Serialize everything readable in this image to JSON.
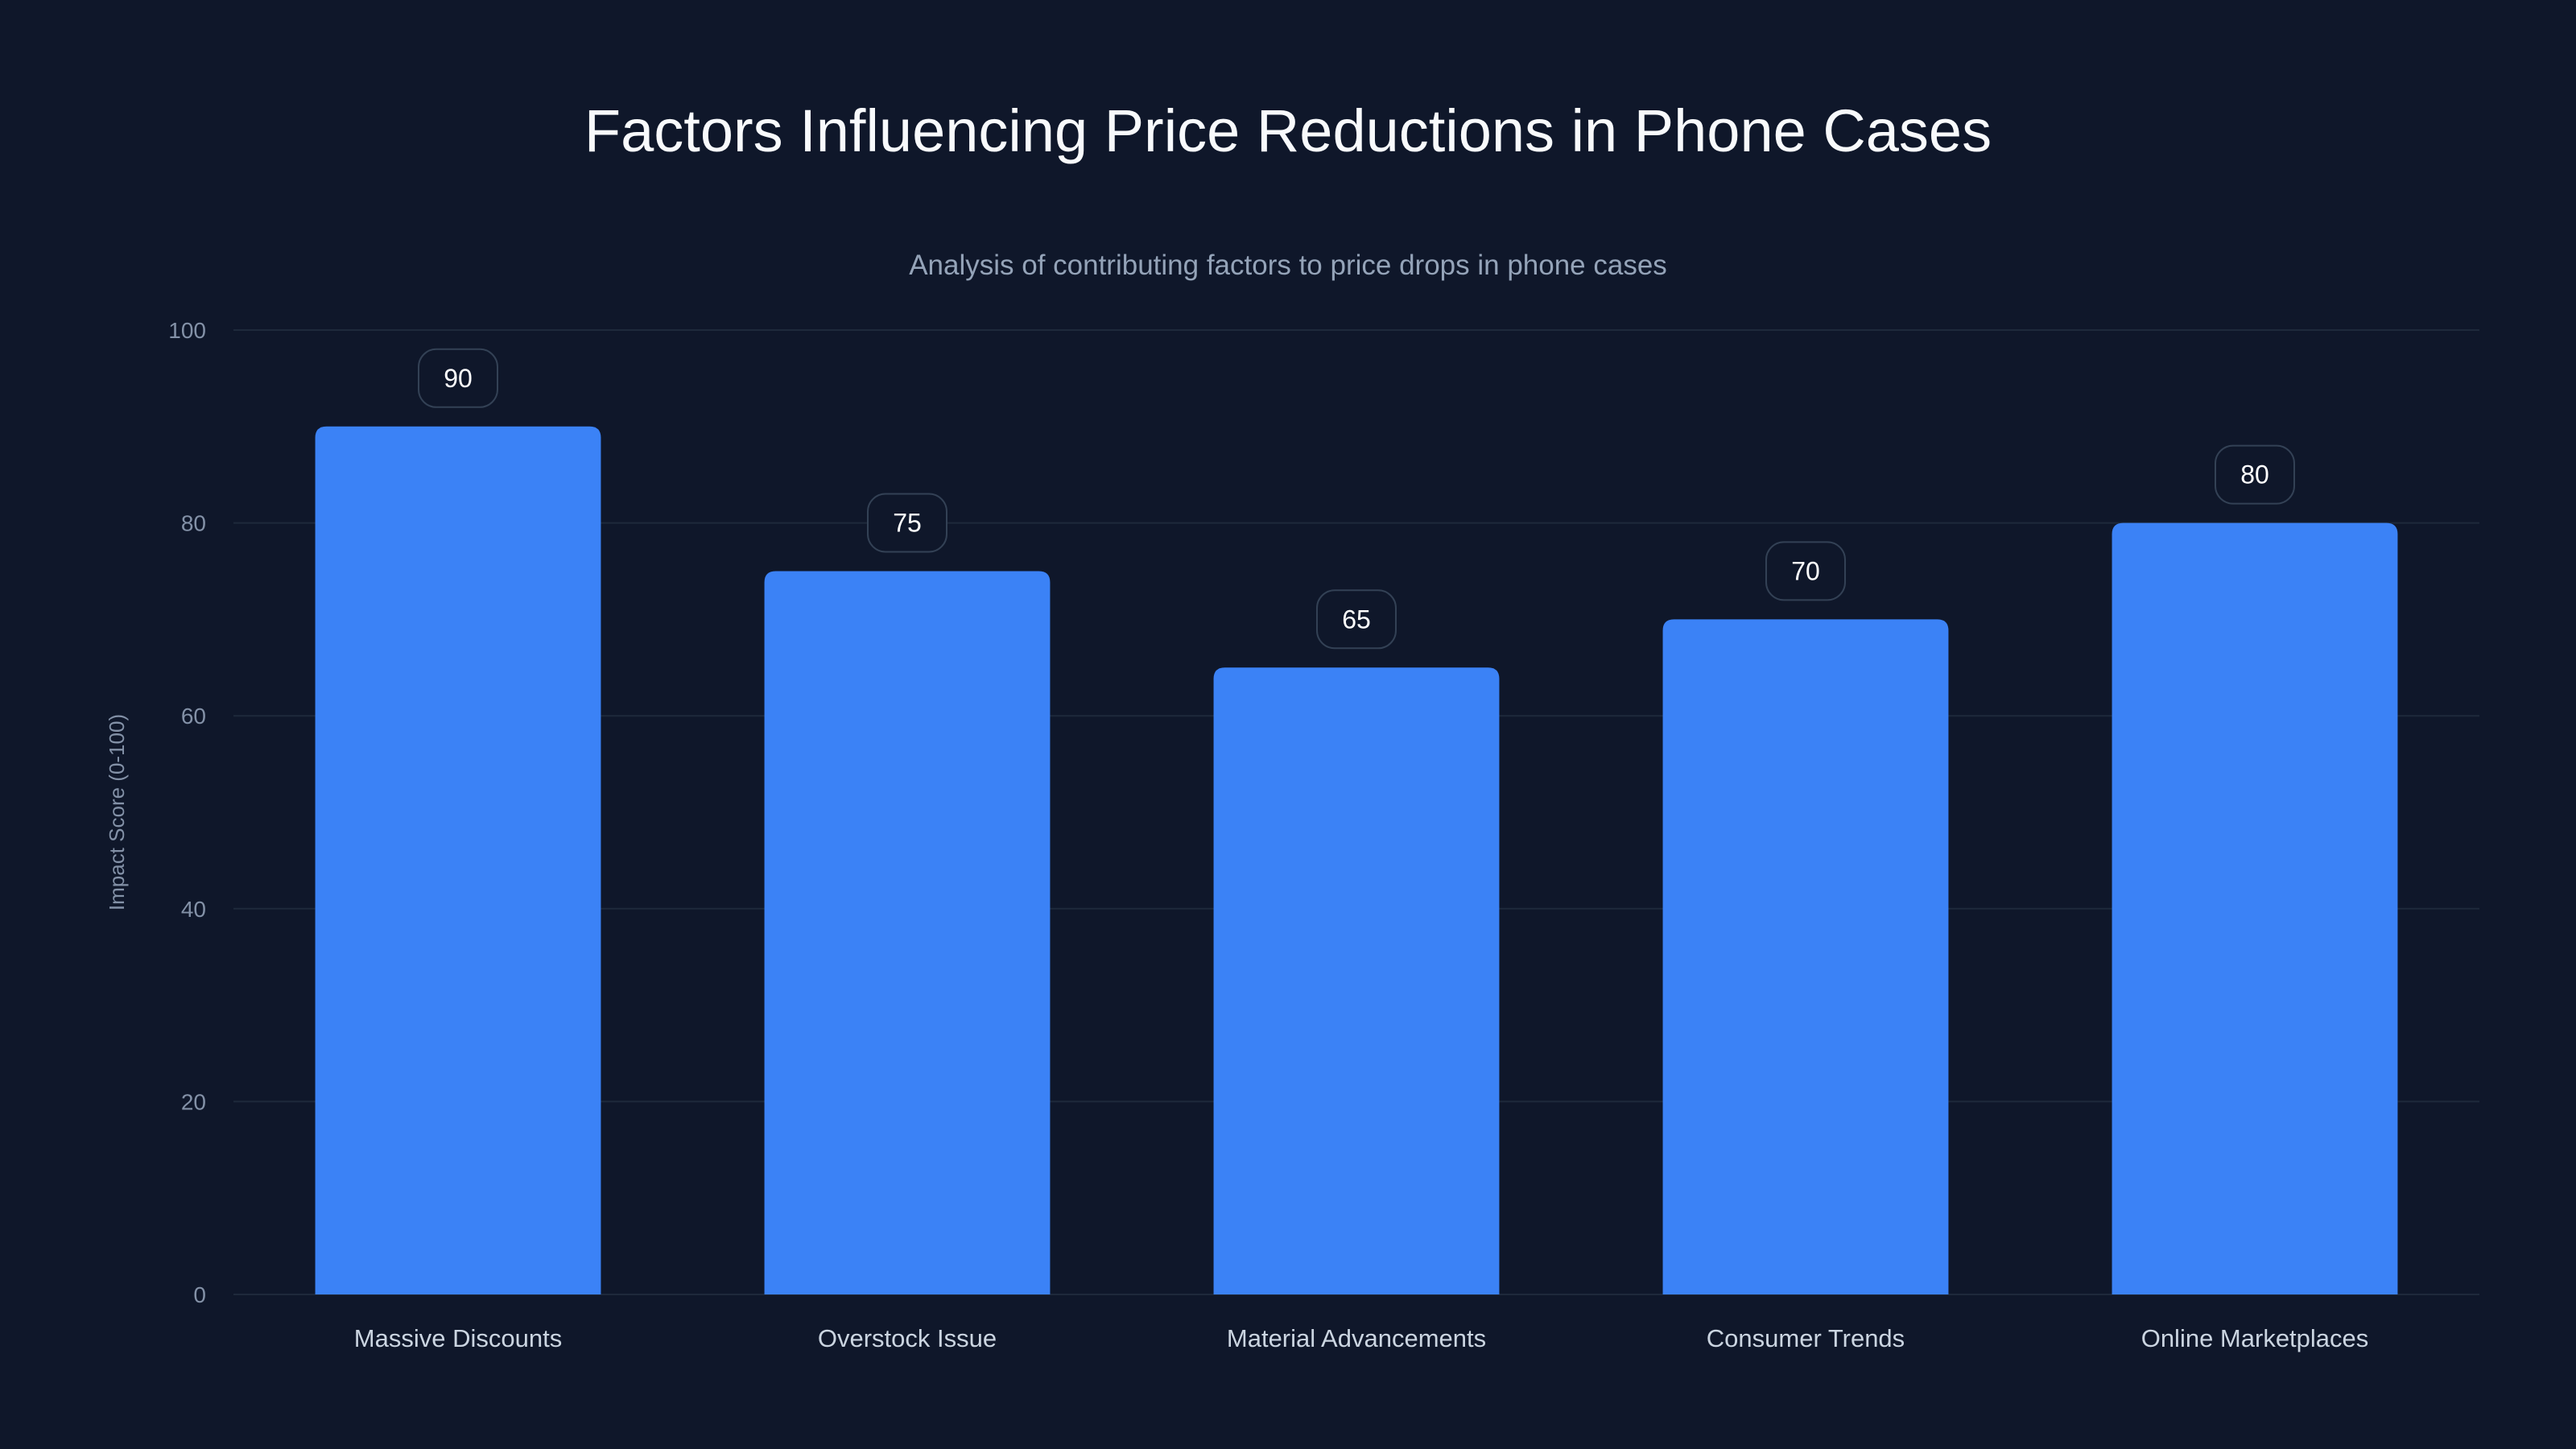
{
  "chart_data": {
    "type": "bar",
    "title": "Factors Influencing Price Reductions in Phone Cases",
    "subtitle": "Analysis of contributing factors to price drops in phone cases",
    "xlabel": "",
    "ylabel": "Impact Score (0-100)",
    "ylim": [
      0,
      100
    ],
    "yticks": [
      0,
      20,
      40,
      60,
      80,
      100
    ],
    "grid": true,
    "categories": [
      "Massive Discounts",
      "Overstock Issue",
      "Material Advancements",
      "Consumer Trends",
      "Online Marketplaces"
    ],
    "values": [
      90,
      75,
      65,
      70,
      80
    ],
    "colors": {
      "bar": "#3b82f6",
      "background": "#0f172a",
      "grid": "#1e293b",
      "label_border": "#334155"
    }
  }
}
